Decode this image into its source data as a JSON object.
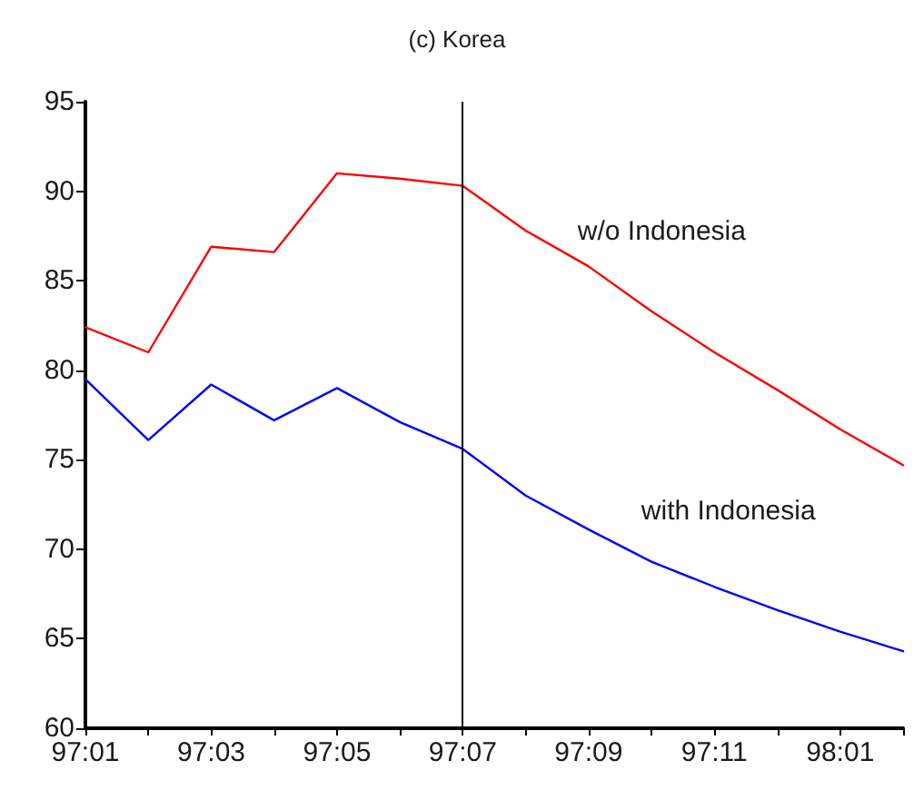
{
  "chart_data": {
    "type": "line",
    "title": "(c) Korea",
    "categories": [
      "97:01",
      null,
      "97:03",
      null,
      "97:05",
      null,
      "97:07",
      null,
      "97:09",
      null,
      "97:11",
      null,
      "98:01",
      null
    ],
    "series": [
      {
        "name": "w/o Indonesia",
        "color": "#ff0000",
        "values": [
          82.4,
          81.0,
          86.9,
          86.6,
          91.0,
          90.7,
          90.3,
          87.8,
          85.8,
          83.3,
          81.0,
          78.9,
          76.7,
          74.7
        ]
      },
      {
        "name": "with Indonesia",
        "color": "#0000ff",
        "values": [
          79.5,
          76.1,
          79.2,
          77.2,
          79.0,
          77.1,
          75.6,
          73.0,
          71.1,
          69.3,
          67.9,
          66.6,
          65.4,
          64.3
        ]
      }
    ],
    "ylim": [
      60,
      95
    ],
    "yticks": [
      60,
      65,
      70,
      75,
      80,
      85,
      90,
      95
    ],
    "marker": "none",
    "line_style": "solid",
    "ref_lines": [
      {
        "axis": "x",
        "value": "97:07",
        "color": "#000000"
      }
    ]
  }
}
